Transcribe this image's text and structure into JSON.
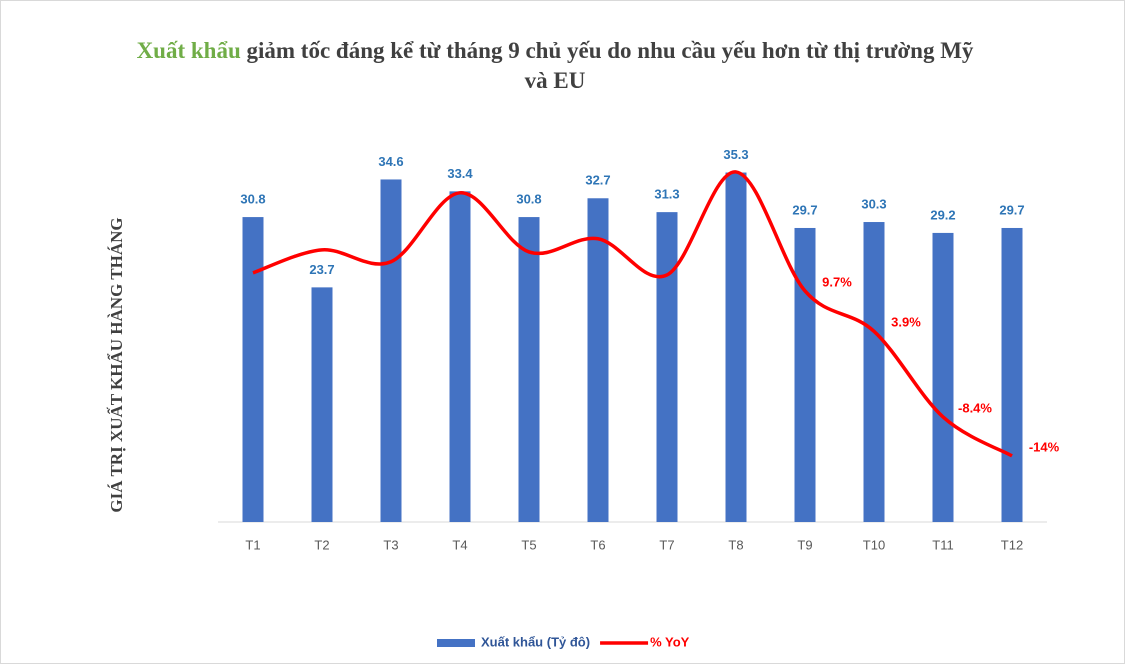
{
  "chart_data": {
    "type": "bar",
    "title": {
      "highlight": "Xuất khẩu",
      "text": "giảm tốc đáng kể từ tháng 9 chủ yếu do nhu cầu yếu hơn từ thị trường Mỹ và EU"
    },
    "y_axis_label": "GIÁ TRỊ XUẤT KHẨU HÀNG THÁNG",
    "categories": [
      "T1",
      "T2",
      "T3",
      "T4",
      "T5",
      "T6",
      "T7",
      "T8",
      "T9",
      "T10",
      "T11",
      "T12"
    ],
    "series": [
      {
        "name": "Xuất khẩu (Tỷ đô)",
        "type": "bar",
        "color": "#4472c4",
        "values": [
          30.8,
          23.7,
          34.6,
          33.4,
          30.8,
          32.7,
          31.3,
          35.3,
          29.7,
          30.3,
          29.2,
          29.7
        ]
      },
      {
        "name": "% YoY",
        "type": "line",
        "axis": "y2",
        "color": "#ff0000",
        "values": [
          12.3,
          15.6,
          13.9,
          23.8,
          15.3,
          17.2,
          12,
          26.8,
          9.7,
          3.9,
          -8.4,
          -14
        ],
        "value_labels": [
          null,
          null,
          null,
          null,
          null,
          null,
          null,
          null,
          "9.7%",
          "3.9%",
          "-8.4%",
          "-14%"
        ]
      }
    ],
    "ylim": [
      0,
      40
    ],
    "y2lim": [
      -23.5,
      33.4
    ],
    "grid": false
  }
}
